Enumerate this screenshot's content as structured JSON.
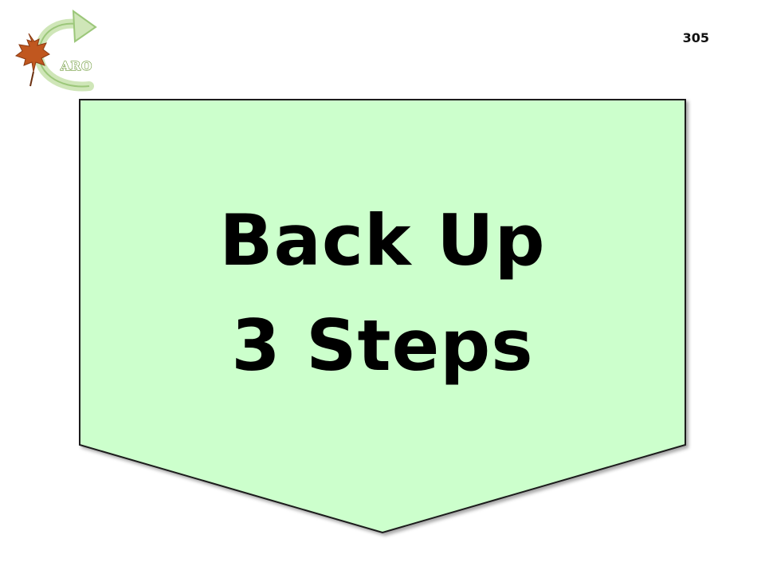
{
  "logo": {
    "text": "ARO",
    "icon": "maple-leaf-with-curved-arrow-icon"
  },
  "page_number": "305",
  "card": {
    "line1": "Back Up",
    "line2": "3 Steps",
    "fill_color": "#ccffcc",
    "border_color": "#1a1a1a"
  }
}
